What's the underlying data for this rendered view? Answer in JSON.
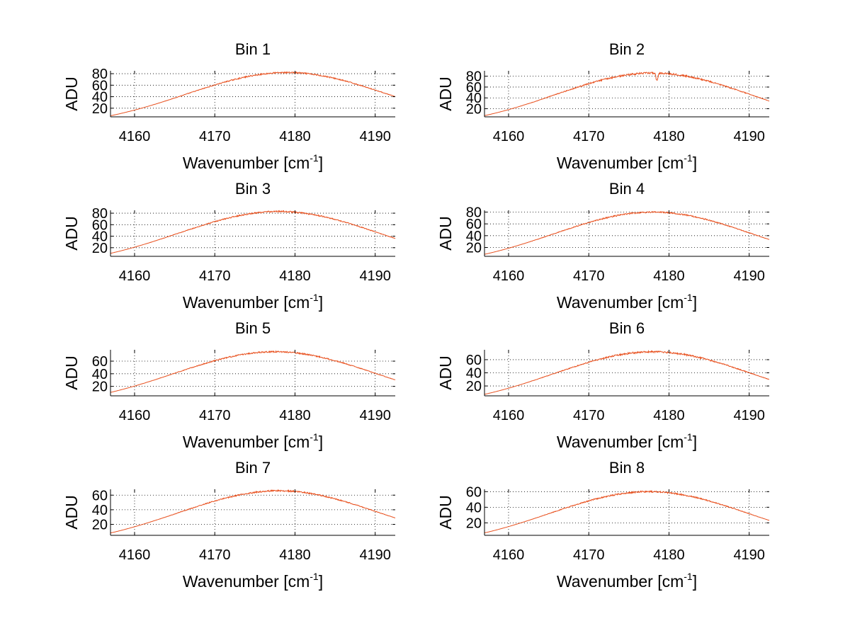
{
  "figure": {
    "background": "#ffffff",
    "line_color": "#e8501e",
    "xlabel_text": "Wavenumber [cm",
    "xlabel_sup": "-1",
    "xlabel_close": "]",
    "ylabel": "ADU"
  },
  "chart_data": [
    {
      "type": "line",
      "title": "Bin 1",
      "xlim": [
        4157,
        4192.5
      ],
      "ylim": [
        5,
        85
      ],
      "xticks": [
        4160,
        4170,
        4180,
        4190
      ],
      "yticks": [
        20,
        40,
        60,
        80
      ],
      "peak_x": 4179,
      "peak_y": 82,
      "width": 12.6,
      "baseline": -14,
      "noise": 1.2,
      "dip": null,
      "xlabel": "Wavenumber [cm-1]",
      "ylabel": "ADU",
      "grid": true
    },
    {
      "type": "line",
      "title": "Bin 2",
      "xlim": [
        4157,
        4192.5
      ],
      "ylim": [
        5,
        90
      ],
      "xticks": [
        4160,
        4170,
        4180,
        4190
      ],
      "yticks": [
        20,
        40,
        60,
        80
      ],
      "peak_x": 4178,
      "peak_y": 86,
      "width": 12.2,
      "baseline": -16,
      "noise": 1.6,
      "dip": {
        "x": 4178.5,
        "depth": 14
      },
      "xlabel": "Wavenumber [cm-1]",
      "ylabel": "ADU",
      "grid": true
    },
    {
      "type": "line",
      "title": "Bin 3",
      "xlim": [
        4157,
        4192.5
      ],
      "ylim": [
        5,
        85
      ],
      "xticks": [
        4160,
        4170,
        4180,
        4190
      ],
      "yticks": [
        20,
        40,
        60,
        80
      ],
      "peak_x": 4178,
      "peak_y": 83,
      "width": 12.6,
      "baseline": -14,
      "noise": 1.2,
      "dip": null,
      "xlabel": "Wavenumber [cm-1]",
      "ylabel": "ADU",
      "grid": true
    },
    {
      "type": "line",
      "title": "Bin 4",
      "xlim": [
        4157,
        4192.5
      ],
      "ylim": [
        5,
        83
      ],
      "xticks": [
        4160,
        4170,
        4180,
        4190
      ],
      "yticks": [
        20,
        40,
        60,
        80
      ],
      "peak_x": 4178,
      "peak_y": 80,
      "width": 12.4,
      "baseline": -14,
      "noise": 1.2,
      "dip": null,
      "xlabel": "Wavenumber [cm-1]",
      "ylabel": "ADU",
      "grid": true
    },
    {
      "type": "line",
      "title": "Bin 5",
      "xlim": [
        4157,
        4192.5
      ],
      "ylim": [
        5,
        78
      ],
      "xticks": [
        4160,
        4170,
        4180,
        4190
      ],
      "yticks": [
        20,
        40,
        60
      ],
      "peak_x": 4177.5,
      "peak_y": 75,
      "width": 12.6,
      "baseline": -13,
      "noise": 1.1,
      "dip": null,
      "xlabel": "Wavenumber [cm-1]",
      "ylabel": "ADU",
      "grid": true
    },
    {
      "type": "line",
      "title": "Bin 6",
      "xlim": [
        4157,
        4192.5
      ],
      "ylim": [
        5,
        75
      ],
      "xticks": [
        4160,
        4170,
        4180,
        4190
      ],
      "yticks": [
        20,
        40,
        60
      ],
      "peak_x": 4178,
      "peak_y": 72,
      "width": 12.4,
      "baseline": -13,
      "noise": 1.3,
      "dip": null,
      "xlabel": "Wavenumber [cm-1]",
      "ylabel": "ADU",
      "grid": true
    },
    {
      "type": "line",
      "title": "Bin 7",
      "xlim": [
        4157,
        4192.5
      ],
      "ylim": [
        5,
        68
      ],
      "xticks": [
        4160,
        4170,
        4180,
        4190
      ],
      "yticks": [
        20,
        40,
        60
      ],
      "peak_x": 4178,
      "peak_y": 66,
      "width": 12.6,
      "baseline": -11,
      "noise": 1.0,
      "dip": null,
      "xlabel": "Wavenumber [cm-1]",
      "ylabel": "ADU",
      "grid": true
    },
    {
      "type": "line",
      "title": "Bin 8",
      "xlim": [
        4157,
        4192.5
      ],
      "ylim": [
        4,
        63
      ],
      "xticks": [
        4160,
        4170,
        4180,
        4190
      ],
      "yticks": [
        20,
        40,
        60
      ],
      "peak_x": 4177.5,
      "peak_y": 60,
      "width": 12.4,
      "baseline": -11,
      "noise": 1.0,
      "dip": null,
      "xlabel": "Wavenumber [cm-1]",
      "ylabel": "ADU",
      "grid": true
    }
  ]
}
